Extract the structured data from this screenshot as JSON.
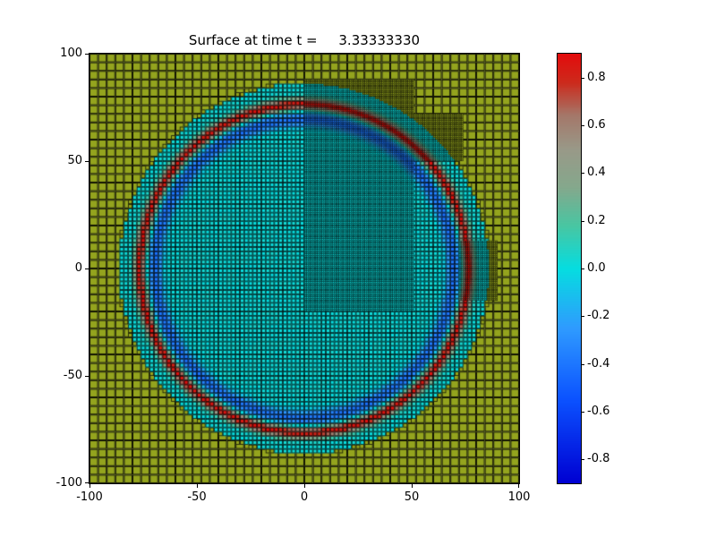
{
  "figure": {
    "title": "Surface at time t =     3.33333330"
  },
  "axes": {
    "xticks": [
      "-100",
      "-50",
      "0",
      "50",
      "100"
    ],
    "yticks": [
      "100",
      "50",
      "0",
      "-50",
      "-100"
    ]
  },
  "colorbar": {
    "ticks": [
      "0.8",
      "0.6",
      "0.4",
      "0.2",
      "0.0",
      "-0.2",
      "-0.4",
      "-0.6",
      "-0.8"
    ]
  },
  "chart_data": {
    "type": "heatmap",
    "title": "Surface at time t = 3.33333330",
    "time": 3.3333333,
    "xlim": [
      -100,
      100
    ],
    "ylim": [
      -100,
      100
    ],
    "xticks": [
      -100,
      -50,
      0,
      50,
      100
    ],
    "yticks": [
      100,
      50,
      0,
      -50,
      -100
    ],
    "colorbar_ticks": [
      0.8,
      0.6,
      0.4,
      0.2,
      0.0,
      -0.2,
      -0.4,
      -0.6,
      -0.8
    ],
    "vmin": -0.9,
    "vmax": 0.9,
    "description": "Radially expanding surface wave (cyan disc, red crest ring at r~76, blue trough at r~70) on olive land background, plotted on an adaptive mesh: coarse grid outside, medium grid over the disc, three fine-grid refinement patches.",
    "land_color": "#94a41e",
    "disc": {
      "cx": 0,
      "cy": 0,
      "radius": 86
    },
    "wave": {
      "base": 0.02,
      "crest_r": 76.5,
      "crest_amp": 0.85,
      "crest_width": 2.6,
      "trough_r": 69.5,
      "trough_amp": -0.42,
      "trough_width": 3.4
    },
    "colormap_stops": [
      {
        "v": -0.9,
        "c": "#0000d2"
      },
      {
        "v": -0.55,
        "c": "#0b52ff"
      },
      {
        "v": -0.25,
        "c": "#2f9bff"
      },
      {
        "v": 0.0,
        "c": "#06dde0"
      },
      {
        "v": 0.18,
        "c": "#49c6a2"
      },
      {
        "v": 0.34,
        "c": "#85a88c"
      },
      {
        "v": 0.5,
        "c": "#999988"
      },
      {
        "v": 0.64,
        "c": "#a4786a"
      },
      {
        "v": 0.78,
        "c": "#cd2a1c"
      },
      {
        "v": 0.9,
        "c": "#e30c0c"
      }
    ],
    "grids": {
      "level1": {
        "dx": 4
      },
      "level2": {
        "dx": 2,
        "within_radius": 87
      },
      "level3_patches": [
        {
          "x0": 0,
          "x1": 51,
          "y0": -20,
          "y1": 88,
          "dx": 1
        },
        {
          "x0": 50,
          "x1": 74,
          "y0": 50,
          "y1": 72,
          "dx": 1
        },
        {
          "x0": 72,
          "x1": 90,
          "y0": -15,
          "y1": 13,
          "dx": 1
        }
      ]
    }
  }
}
